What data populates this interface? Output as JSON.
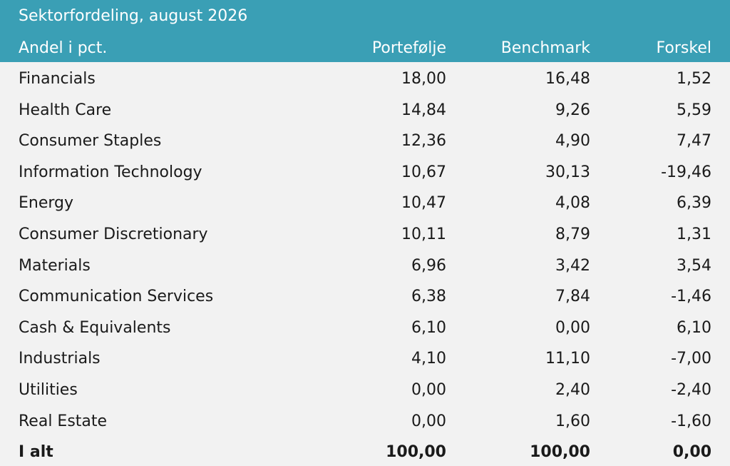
{
  "chart_data": {
    "type": "table",
    "title": "Sektorfordeling, august 2026",
    "columns": [
      "Andel i pct.",
      "Portefølje",
      "Benchmark",
      "Forskel"
    ],
    "rows": [
      {
        "label": "Financials",
        "portefolje": "18,00",
        "benchmark": "16,48",
        "forskel": "1,52"
      },
      {
        "label": "Health Care",
        "portefolje": "14,84",
        "benchmark": "9,26",
        "forskel": "5,59"
      },
      {
        "label": "Consumer Staples",
        "portefolje": "12,36",
        "benchmark": "4,90",
        "forskel": "7,47"
      },
      {
        "label": "Information Technology",
        "portefolje": "10,67",
        "benchmark": "30,13",
        "forskel": "-19,46"
      },
      {
        "label": "Energy",
        "portefolje": "10,47",
        "benchmark": "4,08",
        "forskel": "6,39"
      },
      {
        "label": "Consumer Discretionary",
        "portefolje": "10,11",
        "benchmark": "8,79",
        "forskel": "1,31"
      },
      {
        "label": "Materials",
        "portefolje": "6,96",
        "benchmark": "3,42",
        "forskel": "3,54"
      },
      {
        "label": "Communication Services",
        "portefolje": "6,38",
        "benchmark": "7,84",
        "forskel": "-1,46"
      },
      {
        "label": "Cash & Equivalents",
        "portefolje": "6,10",
        "benchmark": "0,00",
        "forskel": "6,10"
      },
      {
        "label": "Industrials",
        "portefolje": "4,10",
        "benchmark": "11,10",
        "forskel": "-7,00"
      },
      {
        "label": "Utilities",
        "portefolje": "0,00",
        "benchmark": "2,40",
        "forskel": "-2,40"
      },
      {
        "label": "Real Estate",
        "portefolje": "0,00",
        "benchmark": "1,60",
        "forskel": "-1,60"
      }
    ],
    "total": {
      "label": "I alt",
      "portefolje": "100,00",
      "benchmark": "100,00",
      "forskel": "0,00"
    },
    "colors": {
      "header_bg": "#3a9fb5",
      "header_text": "#ffffff",
      "body_bg": "#f2f2f2",
      "text": "#1a1a1a"
    }
  }
}
